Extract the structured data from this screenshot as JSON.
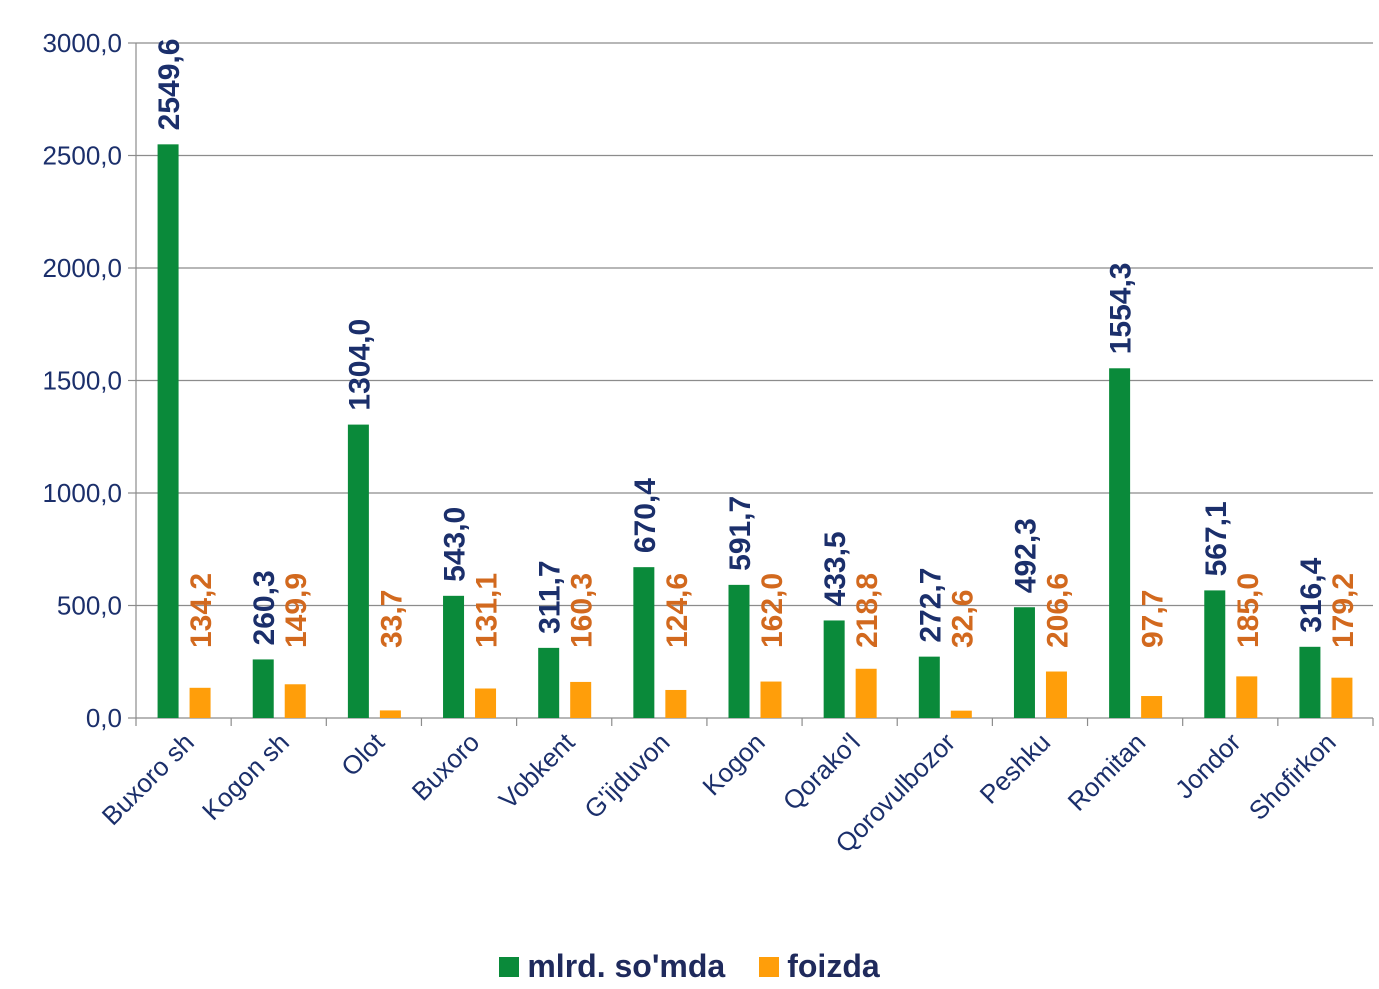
{
  "chart_data": {
    "type": "bar",
    "categories": [
      "Buxoro sh",
      "Kogon sh",
      "Olot",
      "Buxoro",
      "Vobkent",
      "G'ijduvon",
      "Kogon",
      "Qorako'l",
      "Qorovulbozor",
      "Peshku",
      "Romitan",
      "Jondor",
      "Shofirkon"
    ],
    "series": [
      {
        "name": "mlrd. so'mda",
        "color": "#0a8a3a",
        "label_color": "#1b2f6b",
        "values": [
          2549.6,
          260.3,
          1304.0,
          543.0,
          311.7,
          670.4,
          591.7,
          433.5,
          272.7,
          492.3,
          1554.3,
          567.1,
          316.4
        ],
        "labels": [
          "2549,6",
          "260,3",
          "1304,0",
          "543,0",
          "311,7",
          "670,4",
          "591,7",
          "433,5",
          "272,7",
          "492,3",
          "1554,3",
          "567,1",
          "316,4"
        ]
      },
      {
        "name": "foizda",
        "color": "#ff9e0a",
        "label_color": "#d2691e",
        "values": [
          134.2,
          149.9,
          33.7,
          131.1,
          160.3,
          124.6,
          162.0,
          218.8,
          32.6,
          206.6,
          97.7,
          185.0,
          179.2
        ],
        "labels": [
          "134,2",
          "149,9",
          "33,7",
          "131,1",
          "160,3",
          "124,6",
          "162,0",
          "218,8",
          "32,6",
          "206,6",
          "97,7",
          "185,0",
          "179,2"
        ]
      }
    ],
    "y_ticks": [
      0,
      500,
      1000,
      1500,
      2000,
      2500,
      3000
    ],
    "y_tick_labels": [
      "0,0",
      "500,0",
      "1000,0",
      "1500,0",
      "2000,0",
      "2500,0",
      "3000,0"
    ],
    "ylim": [
      0,
      3000
    ],
    "grid": true,
    "legend_position": "bottom"
  }
}
